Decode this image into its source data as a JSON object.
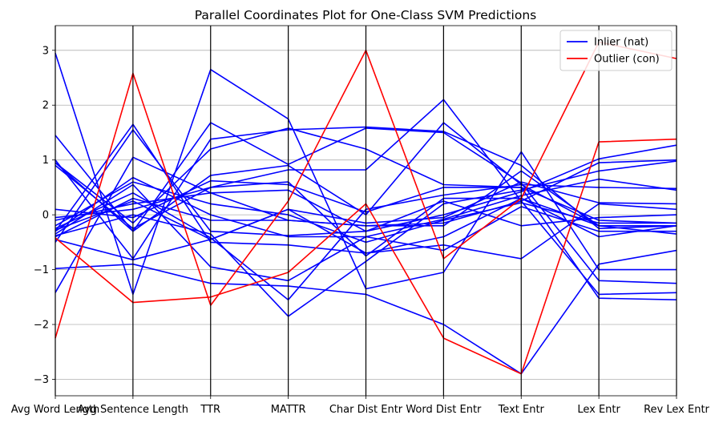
{
  "chart_data": {
    "type": "parallel-coordinates",
    "title": "Parallel Coordinates Plot for One-Class SVM Predictions",
    "axes": [
      "Avg Word Length",
      "Avg Sentence Length",
      "TTR",
      "MATTR",
      "Char Dist Entr",
      "Word Dist Entr",
      "Text Entr",
      "Lex Entr",
      "Rev Lex Entr"
    ],
    "ylim": [
      -3.3,
      3.45
    ],
    "yticks": [
      -3,
      -2,
      -1,
      0,
      1,
      2,
      3
    ],
    "grid": true,
    "legend_position": "top-right",
    "series": [
      {
        "name": "Inlier (nat)",
        "color": "#0000ff",
        "lines": [
          [
            2.95,
            -1.45,
            2.65,
            1.75,
            -1.35,
            -1.05,
            1.15,
            -1.0,
            -1.0
          ],
          [
            1.45,
            -0.3,
            1.68,
            0.92,
            1.58,
            1.5,
            0.58,
            -1.2,
            -1.25
          ],
          [
            1.0,
            -0.8,
            1.38,
            1.55,
            1.6,
            1.52,
            0.9,
            -0.25,
            -0.2
          ],
          [
            0.95,
            -0.15,
            1.2,
            1.58,
            1.2,
            0.55,
            0.5,
            -1.52,
            -1.55
          ],
          [
            0.9,
            -0.25,
            0.5,
            0.82,
            0.82,
            2.1,
            0.25,
            -1.45,
            -1.42
          ],
          [
            0.95,
            -0.3,
            0.72,
            0.9,
            0.0,
            1.68,
            0.55,
            0.5,
            0.48
          ],
          [
            0.1,
            -0.05,
            0.62,
            0.55,
            0.05,
            0.5,
            0.5,
            -0.1,
            -0.15
          ],
          [
            -0.05,
            0.1,
            0.5,
            0.6,
            -0.75,
            0.3,
            0.3,
            -0.2,
            -0.2
          ],
          [
            -0.1,
            0.2,
            0.4,
            0.45,
            -0.3,
            0.0,
            0.42,
            1.02,
            1.27
          ],
          [
            -0.2,
            0.6,
            0.2,
            0.0,
            -0.5,
            -0.1,
            0.22,
            -0.15,
            -0.15
          ],
          [
            -0.3,
            0.68,
            0.0,
            -0.4,
            -0.4,
            -0.08,
            0.35,
            0.65,
            0.45
          ],
          [
            -0.4,
            0.3,
            -0.1,
            -0.1,
            -0.2,
            -0.2,
            0.8,
            -0.2,
            -0.35
          ],
          [
            -0.45,
            -0.82,
            -0.45,
            0.1,
            -0.15,
            -0.05,
            0.6,
            0.22,
            0.2
          ],
          [
            -0.5,
            1.55,
            -0.3,
            -0.38,
            -0.3,
            0.25,
            -0.2,
            -0.05,
            0.0
          ],
          [
            -0.3,
            1.65,
            -0.5,
            -0.55,
            -0.7,
            -0.4,
            0.3,
            -0.4,
            -0.2
          ],
          [
            -0.25,
            0.4,
            -0.42,
            -1.55,
            0.1,
            0.36,
            0.55,
            -0.2,
            -0.2
          ],
          [
            -0.35,
            0.55,
            -0.95,
            -1.2,
            -0.4,
            -0.65,
            0.15,
            -0.3,
            -0.3
          ],
          [
            -0.38,
            0.0,
            -0.35,
            -1.85,
            -0.85,
            0.2,
            0.45,
            0.8,
            0.98
          ],
          [
            -0.98,
            -0.9,
            -1.25,
            -1.3,
            -1.45,
            -2.0,
            -2.9,
            -0.9,
            -0.65
          ],
          [
            -1.42,
            1.05,
            0.4,
            -0.1,
            -0.2,
            -0.15,
            0.25,
            0.95,
            1.0
          ],
          [
            -0.28,
            0.25,
            -0.45,
            0.1,
            -0.7,
            -0.55,
            -0.8,
            0.2,
            0.1
          ]
        ]
      },
      {
        "name": "Outlier (con)",
        "color": "#ff0000",
        "lines": [
          [
            -2.25,
            2.58,
            -1.65,
            0.25,
            3.0,
            -0.8,
            0.3,
            3.15,
            2.85
          ],
          [
            -0.42,
            -1.6,
            -1.5,
            -1.05,
            0.2,
            -2.25,
            -2.9,
            1.33,
            1.38
          ]
        ]
      }
    ]
  }
}
